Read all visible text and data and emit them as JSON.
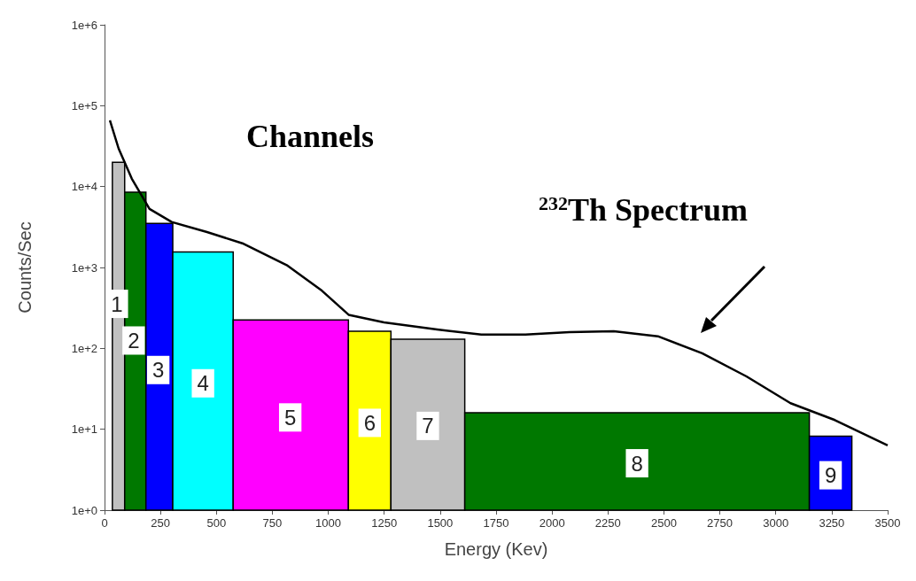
{
  "chart_data": {
    "type": "histogram",
    "xlabel": "Energy (Kev)",
    "ylabel": "Counts/Sec",
    "log": "y",
    "grid": false,
    "xlim": [
      0,
      3500
    ],
    "xticks": [
      0,
      250,
      500,
      750,
      1000,
      1250,
      1500,
      1750,
      2000,
      2250,
      2500,
      2750,
      3000,
      3250,
      3500
    ],
    "ylim": [
      1,
      1000000
    ],
    "yticks": [
      {
        "value": 1,
        "label": "1e+0"
      },
      {
        "value": 10,
        "label": "1e+1"
      },
      {
        "value": 100,
        "label": "1e+2"
      },
      {
        "value": 1000,
        "label": "1e+3"
      },
      {
        "value": 10000,
        "label": "1e+4"
      },
      {
        "value": 100000,
        "label": "1e+5"
      },
      {
        "value": 1000000,
        "label": "1e+6"
      }
    ],
    "series": [
      {
        "bins": [
          35,
          90,
          185,
          305,
          575,
          1090,
          1280,
          1610,
          3150,
          3340
        ],
        "values": [
          20000,
          8500,
          3500,
          1550,
          225,
          163,
          130,
          16,
          8.2
        ],
        "colors": [
          "#c0c0c0",
          "#007800",
          "#0000ff",
          "#00ffff",
          "#ff00ff",
          "#ffff00",
          "#c0c0c0",
          "#007800",
          "#0000ff"
        ]
      },
      {
        "type": "line",
        "color": "#000000",
        "marker": "none",
        "x": [
          24,
          63,
          122,
          201,
          300,
          458,
          616,
          814,
          972,
          1091,
          1249,
          1486,
          1684,
          1881,
          2078,
          2276,
          2473,
          2671,
          2869,
          3066,
          3264,
          3500
        ],
        "values": [
          66000,
          29500,
          12500,
          5300,
          3650,
          2740,
          1990,
          1070,
          515,
          260,
          209,
          171,
          148,
          148,
          159,
          163,
          141,
          87,
          45,
          21,
          13,
          6.3
        ]
      }
    ],
    "annotations": [
      "Channels",
      "$^{232}$Th Spectrum",
      {
        "text": "1",
        "x": 55,
        "y": 355
      },
      {
        "text": "2",
        "x": 130,
        "y": 125
      },
      {
        "text": "3",
        "x": 240,
        "y": 54
      },
      {
        "text": "4",
        "x": 440,
        "y": 37
      },
      {
        "text": "5",
        "x": 830,
        "y": 14
      },
      {
        "text": "6",
        "x": 1185,
        "y": 12
      },
      {
        "text": "7",
        "x": 1445,
        "y": 11
      },
      {
        "text": "8",
        "x": 2380,
        "y": 3.8
      },
      {
        "text": "9",
        "x": 3245,
        "y": 2.7
      }
    ]
  }
}
